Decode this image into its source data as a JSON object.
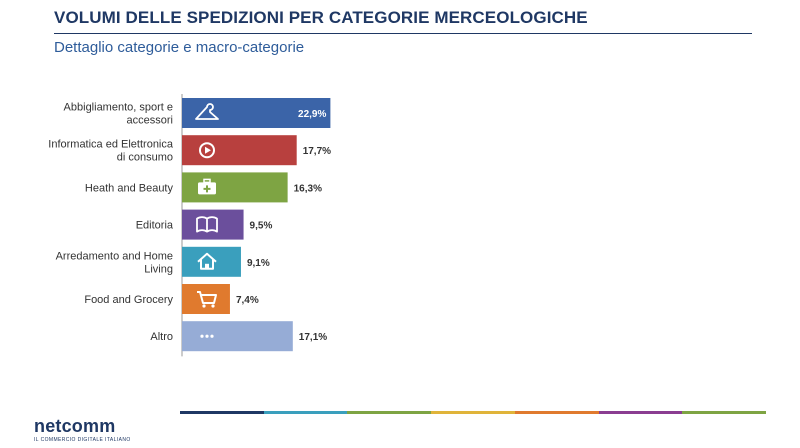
{
  "header": {
    "title": "VOLUMI DELLE SPEDIZIONI PER CATEGORIE MERCEOLOGICHE",
    "subtitle": "Dettaglio categorie e macro-categorie"
  },
  "chart_data": {
    "type": "bar",
    "orientation": "horizontal",
    "title": "",
    "xlabel": "",
    "ylabel": "",
    "xlim": [
      0,
      25
    ],
    "grid": false,
    "categories": [
      "Abbigliamento, sport e accessori",
      "Informatica ed Elettronica di consumo",
      "Heath and Beauty",
      "Editoria",
      "Arredamento and Home Living",
      "Food and Grocery",
      "Altro"
    ],
    "category_lines": [
      [
        "Abbigliamento, sport e",
        "accessori"
      ],
      [
        "Informatica ed Elettronica",
        "di consumo"
      ],
      [
        "Heath and Beauty"
      ],
      [
        "Editoria"
      ],
      [
        "Arredamento and Home",
        "Living"
      ],
      [
        "Food and Grocery"
      ],
      [
        "Altro"
      ]
    ],
    "values": [
      22.9,
      17.7,
      16.3,
      9.5,
      9.1,
      7.4,
      17.1
    ],
    "value_labels": [
      "22,9%",
      "17,7%",
      "16,3%",
      "9,5%",
      "9,1%",
      "7,4%",
      "17,1%"
    ],
    "colors": [
      "#3b64a8",
      "#b8403e",
      "#7ea443",
      "#6b4f9c",
      "#3a9fbd",
      "#e07a2e",
      "#96acd6"
    ],
    "icons": [
      "hanger-icon",
      "play-icon",
      "medkit-icon",
      "book-icon",
      "home-icon",
      "cart-icon",
      "more-icon"
    ]
  },
  "footer": {
    "logo": "netcomm",
    "tagline": "IL COMMERCIO DIGITALE ITALIANO",
    "stripe_colors": [
      "#1f3864",
      "#3a9fbd",
      "#7ea443",
      "#e0b43a",
      "#e07a2e",
      "#8a3d91",
      "#7ea443"
    ]
  }
}
